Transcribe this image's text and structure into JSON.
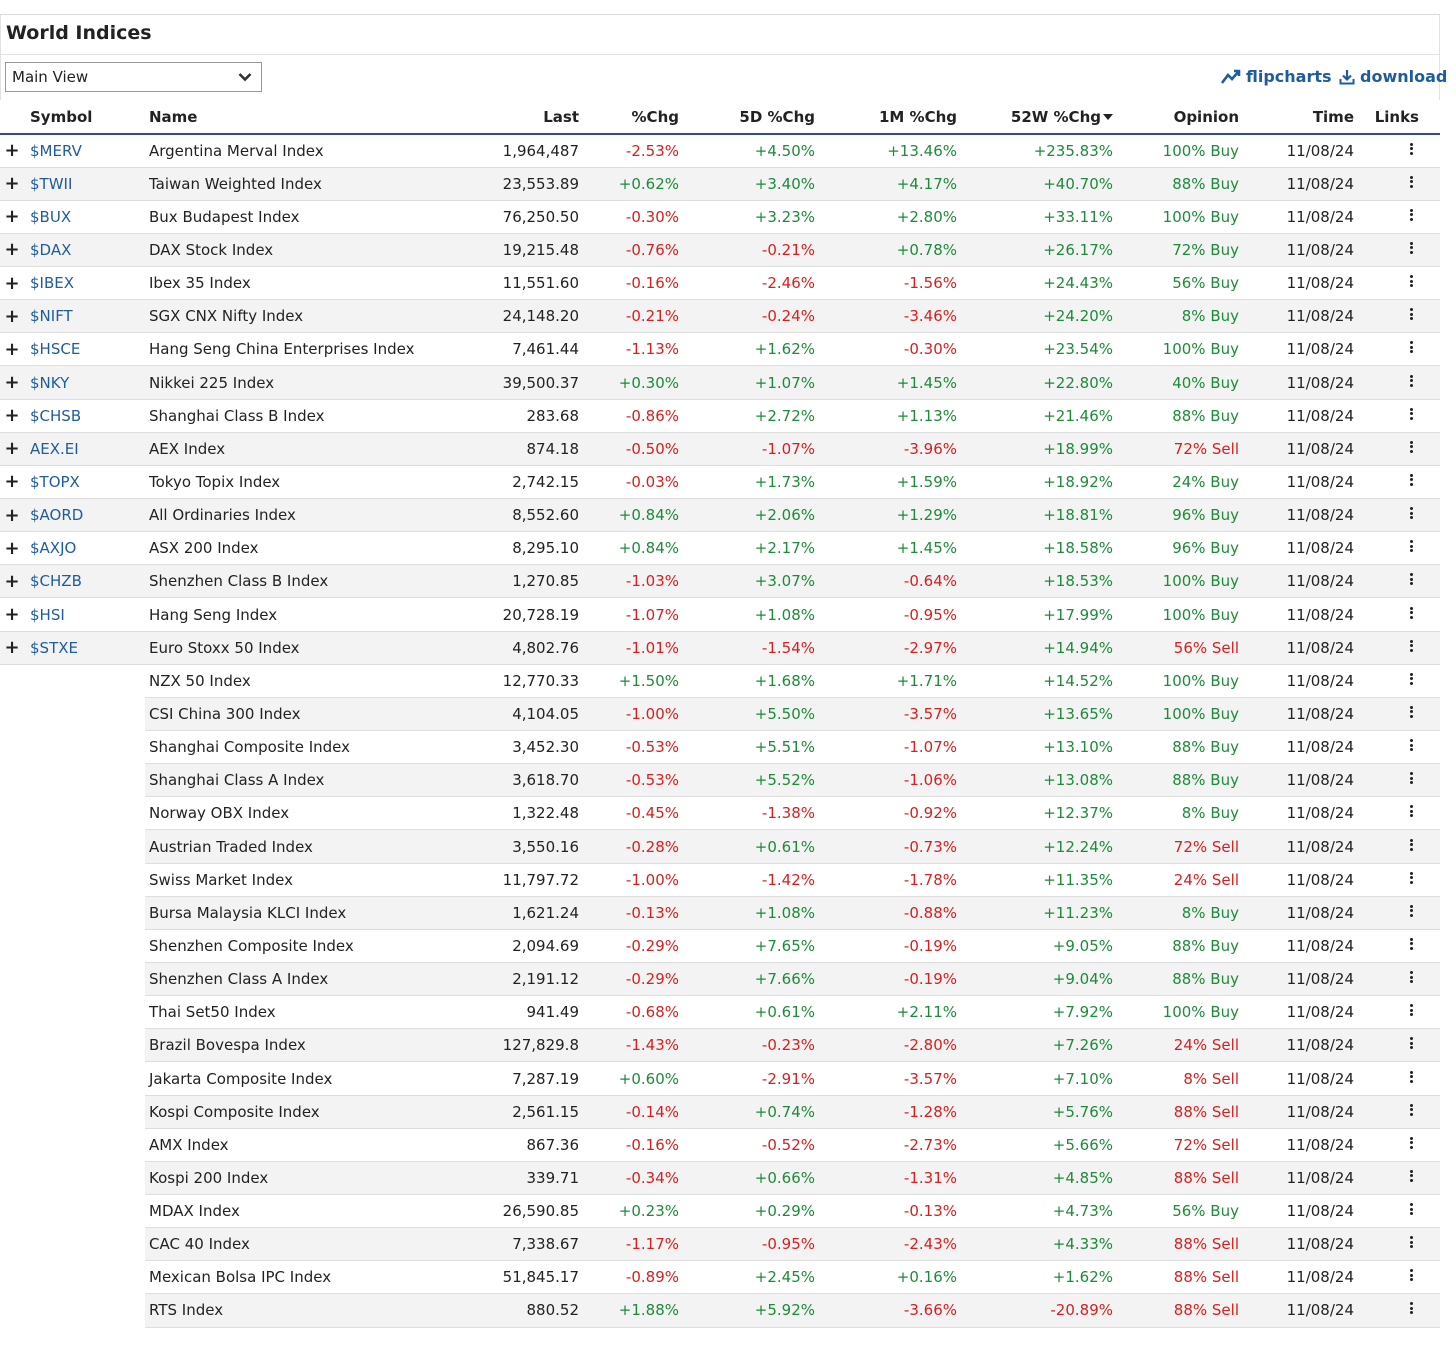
{
  "page": {
    "title": "World Indices"
  },
  "toolbar": {
    "view_value": "Main View",
    "flipcharts_label": "flipcharts",
    "download_label": "download"
  },
  "icons": {
    "expand": "plus-icon",
    "links": "more-vertical-icon",
    "flipcharts": "trend-chart-icon",
    "download": "download-icon",
    "dropdown": "chevron-down-icon"
  },
  "colors": {
    "positive": "#1e8a3a",
    "negative": "#d42020",
    "link": "#1f5c9e",
    "header_rule": "#2b4f8a"
  },
  "table": {
    "columns": [
      "Symbol",
      "Name",
      "Last",
      "%Chg",
      "5D %Chg",
      "1M %Chg",
      "52W %Chg",
      "Opinion",
      "Time",
      "Links"
    ],
    "rows": [
      {
        "symbol": "$MERV",
        "name": "Argentina Merval Index",
        "last": "1,964,487",
        "chg": "-2.53%",
        "chg5d": "+4.50%",
        "chg1m": "+13.46%",
        "chg52w": "+235.83%",
        "opinion": "100% Buy",
        "time": "11/08/24"
      },
      {
        "symbol": "$TWII",
        "name": "Taiwan Weighted Index",
        "last": "23,553.89",
        "chg": "+0.62%",
        "chg5d": "+3.40%",
        "chg1m": "+4.17%",
        "chg52w": "+40.70%",
        "opinion": "88% Buy",
        "time": "11/08/24"
      },
      {
        "symbol": "$BUX",
        "name": "Bux Budapest Index",
        "last": "76,250.50",
        "chg": "-0.30%",
        "chg5d": "+3.23%",
        "chg1m": "+2.80%",
        "chg52w": "+33.11%",
        "opinion": "100% Buy",
        "time": "11/08/24"
      },
      {
        "symbol": "$DAX",
        "name": "DAX Stock Index",
        "last": "19,215.48",
        "chg": "-0.76%",
        "chg5d": "-0.21%",
        "chg1m": "+0.78%",
        "chg52w": "+26.17%",
        "opinion": "72% Buy",
        "time": "11/08/24"
      },
      {
        "symbol": "$IBEX",
        "name": "Ibex 35 Index",
        "last": "11,551.60",
        "chg": "-0.16%",
        "chg5d": "-2.46%",
        "chg1m": "-1.56%",
        "chg52w": "+24.43%",
        "opinion": "56% Buy",
        "time": "11/08/24"
      },
      {
        "symbol": "$NIFT",
        "name": "SGX CNX Nifty Index",
        "last": "24,148.20",
        "chg": "-0.21%",
        "chg5d": "-0.24%",
        "chg1m": "-3.46%",
        "chg52w": "+24.20%",
        "opinion": "8% Buy",
        "time": "11/08/24"
      },
      {
        "symbol": "$HSCE",
        "name": "Hang Seng China Enterprises Index",
        "last": "7,461.44",
        "chg": "-1.13%",
        "chg5d": "+1.62%",
        "chg1m": "-0.30%",
        "chg52w": "+23.54%",
        "opinion": "100% Buy",
        "time": "11/08/24"
      },
      {
        "symbol": "$NKY",
        "name": "Nikkei 225 Index",
        "last": "39,500.37",
        "chg": "+0.30%",
        "chg5d": "+1.07%",
        "chg1m": "+1.45%",
        "chg52w": "+22.80%",
        "opinion": "40% Buy",
        "time": "11/08/24"
      },
      {
        "symbol": "$CHSB",
        "name": "Shanghai Class B Index",
        "last": "283.68",
        "chg": "-0.86%",
        "chg5d": "+2.72%",
        "chg1m": "+1.13%",
        "chg52w": "+21.46%",
        "opinion": "88% Buy",
        "time": "11/08/24"
      },
      {
        "symbol": "AEX.EI",
        "name": "AEX Index",
        "last": "874.18",
        "chg": "-0.50%",
        "chg5d": "-1.07%",
        "chg1m": "-3.96%",
        "chg52w": "+18.99%",
        "opinion": "72% Sell",
        "time": "11/08/24"
      },
      {
        "symbol": "$TOPX",
        "name": "Tokyo Topix Index",
        "last": "2,742.15",
        "chg": "-0.03%",
        "chg5d": "+1.73%",
        "chg1m": "+1.59%",
        "chg52w": "+18.92%",
        "opinion": "24% Buy",
        "time": "11/08/24"
      },
      {
        "symbol": "$AORD",
        "name": "All Ordinaries Index",
        "last": "8,552.60",
        "chg": "+0.84%",
        "chg5d": "+2.06%",
        "chg1m": "+1.29%",
        "chg52w": "+18.81%",
        "opinion": "96% Buy",
        "time": "11/08/24"
      },
      {
        "symbol": "$AXJO",
        "name": "ASX 200 Index",
        "last": "8,295.10",
        "chg": "+0.84%",
        "chg5d": "+2.17%",
        "chg1m": "+1.45%",
        "chg52w": "+18.58%",
        "opinion": "96% Buy",
        "time": "11/08/24"
      },
      {
        "symbol": "$CHZB",
        "name": "Shenzhen Class B Index",
        "last": "1,270.85",
        "chg": "-1.03%",
        "chg5d": "+3.07%",
        "chg1m": "-0.64%",
        "chg52w": "+18.53%",
        "opinion": "100% Buy",
        "time": "11/08/24"
      },
      {
        "symbol": "$HSI",
        "name": "Hang Seng Index",
        "last": "20,728.19",
        "chg": "-1.07%",
        "chg5d": "+1.08%",
        "chg1m": "-0.95%",
        "chg52w": "+17.99%",
        "opinion": "100% Buy",
        "time": "11/08/24"
      },
      {
        "symbol": "$STXE",
        "name": "Euro Stoxx 50 Index",
        "last": "4,802.76",
        "chg": "-1.01%",
        "chg5d": "-1.54%",
        "chg1m": "-2.97%",
        "chg52w": "+14.94%",
        "opinion": "56% Sell",
        "time": "11/08/24"
      },
      {
        "symbol": "",
        "name": "NZX 50 Index",
        "last": "12,770.33",
        "chg": "+1.50%",
        "chg5d": "+1.68%",
        "chg1m": "+1.71%",
        "chg52w": "+14.52%",
        "opinion": "100% Buy",
        "time": "11/08/24"
      },
      {
        "symbol": "",
        "name": "CSI China 300 Index",
        "last": "4,104.05",
        "chg": "-1.00%",
        "chg5d": "+5.50%",
        "chg1m": "-3.57%",
        "chg52w": "+13.65%",
        "opinion": "100% Buy",
        "time": "11/08/24"
      },
      {
        "symbol": "",
        "name": "Shanghai Composite Index",
        "last": "3,452.30",
        "chg": "-0.53%",
        "chg5d": "+5.51%",
        "chg1m": "-1.07%",
        "chg52w": "+13.10%",
        "opinion": "88% Buy",
        "time": "11/08/24"
      },
      {
        "symbol": "",
        "name": "Shanghai Class A Index",
        "last": "3,618.70",
        "chg": "-0.53%",
        "chg5d": "+5.52%",
        "chg1m": "-1.06%",
        "chg52w": "+13.08%",
        "opinion": "88% Buy",
        "time": "11/08/24"
      },
      {
        "symbol": "",
        "name": "Norway OBX Index",
        "last": "1,322.48",
        "chg": "-0.45%",
        "chg5d": "-1.38%",
        "chg1m": "-0.92%",
        "chg52w": "+12.37%",
        "opinion": "8% Buy",
        "time": "11/08/24"
      },
      {
        "symbol": "",
        "name": "Austrian Traded Index",
        "last": "3,550.16",
        "chg": "-0.28%",
        "chg5d": "+0.61%",
        "chg1m": "-0.73%",
        "chg52w": "+12.24%",
        "opinion": "72% Sell",
        "time": "11/08/24"
      },
      {
        "symbol": "",
        "name": "Swiss Market Index",
        "last": "11,797.72",
        "chg": "-1.00%",
        "chg5d": "-1.42%",
        "chg1m": "-1.78%",
        "chg52w": "+11.35%",
        "opinion": "24% Sell",
        "time": "11/08/24"
      },
      {
        "symbol": "",
        "name": "Bursa Malaysia KLCI Index",
        "last": "1,621.24",
        "chg": "-0.13%",
        "chg5d": "+1.08%",
        "chg1m": "-0.88%",
        "chg52w": "+11.23%",
        "opinion": "8% Buy",
        "time": "11/08/24"
      },
      {
        "symbol": "",
        "name": "Shenzhen Composite Index",
        "last": "2,094.69",
        "chg": "-0.29%",
        "chg5d": "+7.65%",
        "chg1m": "-0.19%",
        "chg52w": "+9.05%",
        "opinion": "88% Buy",
        "time": "11/08/24"
      },
      {
        "symbol": "",
        "name": "Shenzhen Class A Index",
        "last": "2,191.12",
        "chg": "-0.29%",
        "chg5d": "+7.66%",
        "chg1m": "-0.19%",
        "chg52w": "+9.04%",
        "opinion": "88% Buy",
        "time": "11/08/24"
      },
      {
        "symbol": "",
        "name": "Thai Set50 Index",
        "last": "941.49",
        "chg": "-0.68%",
        "chg5d": "+0.61%",
        "chg1m": "+2.11%",
        "chg52w": "+7.92%",
        "opinion": "100% Buy",
        "time": "11/08/24"
      },
      {
        "symbol": "",
        "name": "Brazil Bovespa Index",
        "last": "127,829.8",
        "chg": "-1.43%",
        "chg5d": "-0.23%",
        "chg1m": "-2.80%",
        "chg52w": "+7.26%",
        "opinion": "24% Sell",
        "time": "11/08/24"
      },
      {
        "symbol": "",
        "name": "Jakarta Composite Index",
        "last": "7,287.19",
        "chg": "+0.60%",
        "chg5d": "-2.91%",
        "chg1m": "-3.57%",
        "chg52w": "+7.10%",
        "opinion": "8% Sell",
        "time": "11/08/24"
      },
      {
        "symbol": "",
        "name": "Kospi Composite Index",
        "last": "2,561.15",
        "chg": "-0.14%",
        "chg5d": "+0.74%",
        "chg1m": "-1.28%",
        "chg52w": "+5.76%",
        "opinion": "88% Sell",
        "time": "11/08/24"
      },
      {
        "symbol": "",
        "name": "AMX Index",
        "last": "867.36",
        "chg": "-0.16%",
        "chg5d": "-0.52%",
        "chg1m": "-2.73%",
        "chg52w": "+5.66%",
        "opinion": "72% Sell",
        "time": "11/08/24"
      },
      {
        "symbol": "",
        "name": "Kospi 200 Index",
        "last": "339.71",
        "chg": "-0.34%",
        "chg5d": "+0.66%",
        "chg1m": "-1.31%",
        "chg52w": "+4.85%",
        "opinion": "88% Sell",
        "time": "11/08/24"
      },
      {
        "symbol": "",
        "name": "MDAX Index",
        "last": "26,590.85",
        "chg": "+0.23%",
        "chg5d": "+0.29%",
        "chg1m": "-0.13%",
        "chg52w": "+4.73%",
        "opinion": "56% Buy",
        "time": "11/08/24"
      },
      {
        "symbol": "",
        "name": "CAC 40 Index",
        "last": "7,338.67",
        "chg": "-1.17%",
        "chg5d": "-0.95%",
        "chg1m": "-2.43%",
        "chg52w": "+4.33%",
        "opinion": "88% Sell",
        "time": "11/08/24"
      },
      {
        "symbol": "",
        "name": "Mexican Bolsa IPC Index",
        "last": "51,845.17",
        "chg": "-0.89%",
        "chg5d": "+2.45%",
        "chg1m": "+0.16%",
        "chg52w": "+1.62%",
        "opinion": "88% Sell",
        "time": "11/08/24"
      },
      {
        "symbol": "",
        "name": "RTS Index",
        "last": "880.52",
        "chg": "+1.88%",
        "chg5d": "+5.92%",
        "chg1m": "-3.66%",
        "chg52w": "-20.89%",
        "opinion": "88% Sell",
        "time": "11/08/24"
      }
    ]
  }
}
